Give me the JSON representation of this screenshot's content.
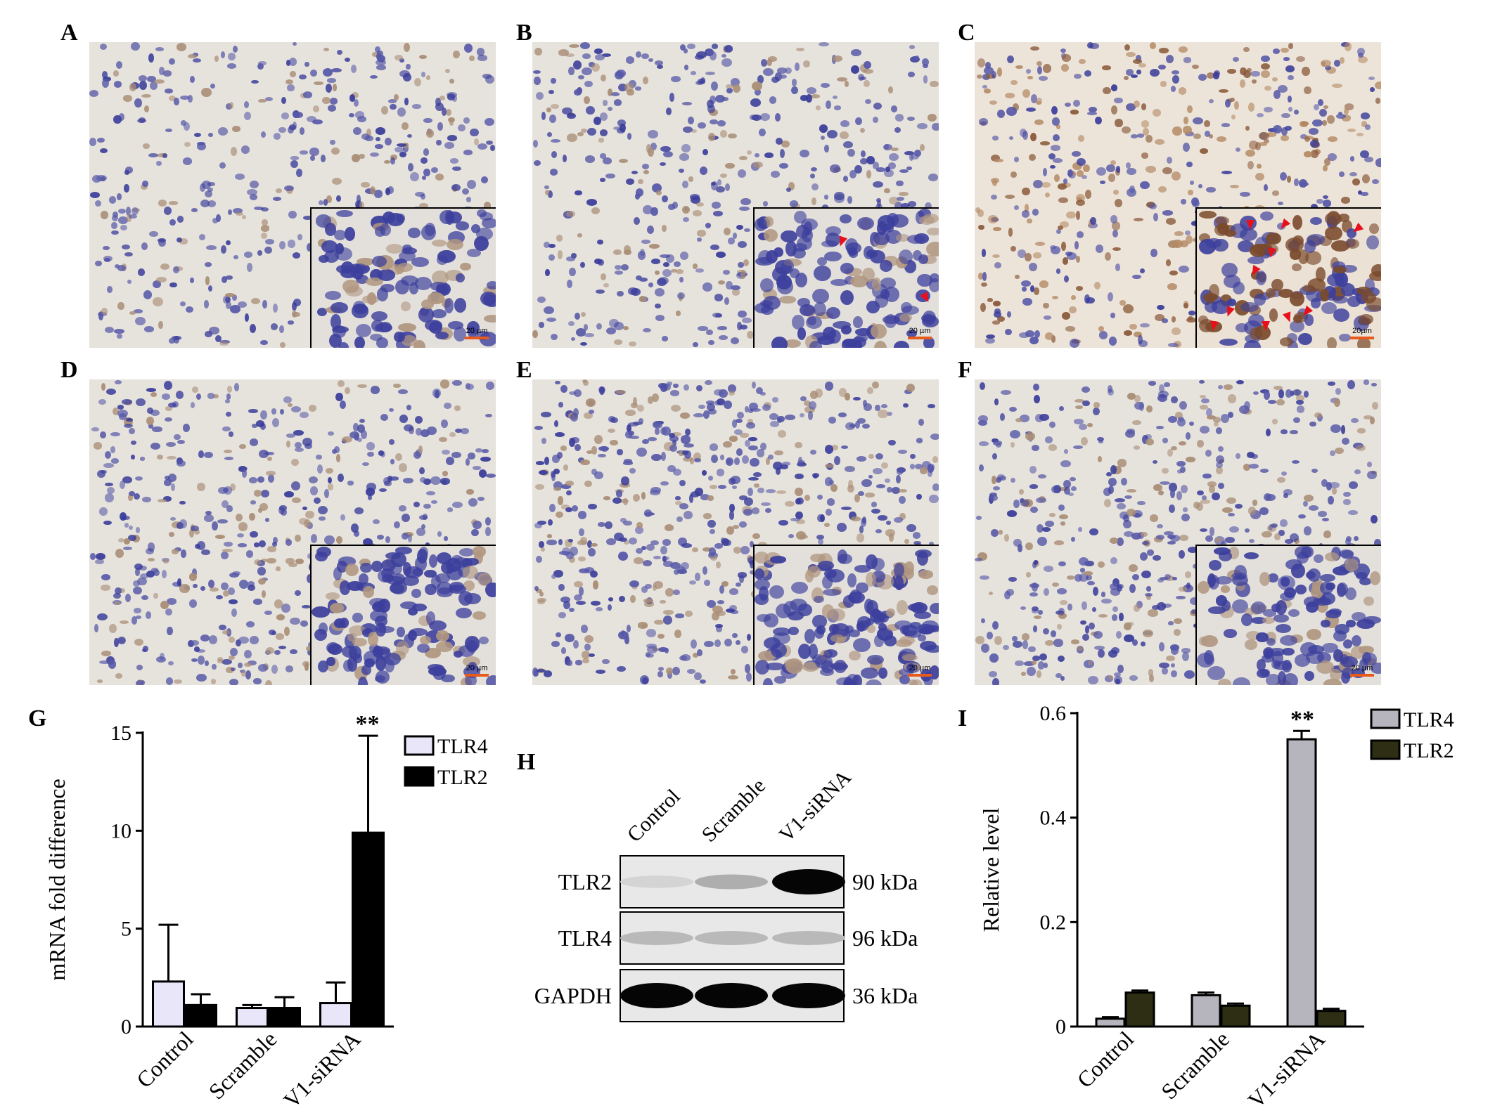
{
  "panels": {
    "A": {
      "label": "A",
      "scale": "20 µm"
    },
    "B": {
      "label": "B",
      "scale": "20 µm"
    },
    "C": {
      "label": "C",
      "scale": "20µm"
    },
    "D": {
      "label": "D",
      "scale": "20 µm"
    },
    "E": {
      "label": "E",
      "scale": "20 µm"
    },
    "F": {
      "label": "F",
      "scale": "20 µm"
    },
    "G": {
      "label": "G"
    },
    "H": {
      "label": "H"
    },
    "I": {
      "label": "I"
    }
  },
  "western_blot": {
    "lanes": [
      "Control",
      "Scramble",
      "V1-siRNA"
    ],
    "rows": [
      {
        "protein": "TLR2",
        "size": "90 kDa",
        "intensity": [
          0.08,
          0.25,
          1.0
        ]
      },
      {
        "protein": "TLR4",
        "size": "96 kDa",
        "intensity": [
          0.2,
          0.2,
          0.2
        ]
      },
      {
        "protein": "GAPDH",
        "size": "36 kDa",
        "intensity": [
          1.0,
          1.0,
          1.0
        ]
      }
    ]
  },
  "colors": {
    "g_tlr4": "#e8e6f8",
    "g_tlr2": "#000000",
    "i_tlr4": "#b6b5bd",
    "i_tlr2": "#2e2e14",
    "arrow": "#e8101a",
    "scalebar": "#e85a1c"
  },
  "chart_data": [
    {
      "id": "G",
      "type": "bar",
      "categories": [
        "Control",
        "Scramble",
        "V1-siRNA"
      ],
      "series": [
        {
          "name": "TLR4",
          "values": [
            2.3,
            0.95,
            1.2
          ],
          "errors": [
            2.9,
            0.15,
            1.05
          ]
        },
        {
          "name": "TLR2",
          "values": [
            1.1,
            0.95,
            9.9
          ],
          "errors": [
            0.55,
            0.55,
            4.95
          ]
        }
      ],
      "significance": [
        {
          "category": "V1-siRNA",
          "label": "**"
        }
      ],
      "xlabel": "",
      "ylabel": "mRNA fold difference",
      "ylim": [
        0,
        15
      ],
      "yticks": [
        0,
        5,
        10,
        15
      ],
      "legend": "top-right",
      "grid": false
    },
    {
      "id": "I",
      "type": "bar",
      "categories": [
        "Control",
        "Scramble",
        "V1-siRNA"
      ],
      "series": [
        {
          "name": "TLR4",
          "values": [
            0.015,
            0.06,
            0.55
          ],
          "errors": [
            0.003,
            0.005,
            0.016
          ]
        },
        {
          "name": "TLR2",
          "values": [
            0.065,
            0.04,
            0.03
          ],
          "errors": [
            0.004,
            0.004,
            0.004
          ]
        }
      ],
      "significance": [
        {
          "category": "V1-siRNA",
          "label": "**"
        }
      ],
      "xlabel": "",
      "ylabel": "Relative level",
      "ylim": [
        0,
        0.6
      ],
      "yticks": [
        "0",
        "0.2",
        "0.4",
        "0.6"
      ],
      "legend": "top-right",
      "grid": false
    }
  ]
}
